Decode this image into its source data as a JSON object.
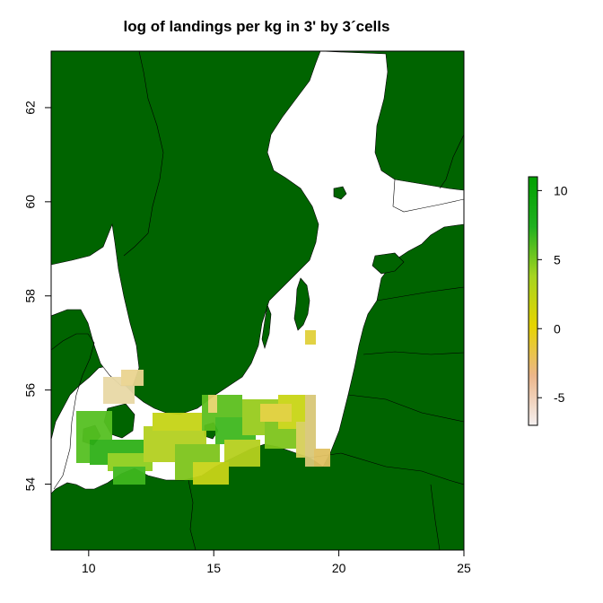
{
  "title": "log of landings per kg in 3' by 3´cells",
  "map": {
    "x_axis": {
      "range": [
        8.5,
        25
      ],
      "ticks": [
        10,
        15,
        20,
        25
      ],
      "labels": [
        "10",
        "15",
        "20",
        "25"
      ]
    },
    "y_axis": {
      "range": [
        52.6,
        63.2
      ],
      "ticks": [
        54,
        56,
        58,
        60,
        62
      ],
      "labels": [
        "54",
        "56",
        "58",
        "60",
        "62"
      ]
    },
    "land_color": "#006400",
    "sea_color": "#ffffff",
    "border_color": "#000000"
  },
  "legend": {
    "ticks": [
      10,
      5,
      0,
      -5
    ],
    "labels": [
      "10",
      "5",
      "0",
      "-5"
    ],
    "range": [
      -7,
      11
    ],
    "gradient_colors": [
      "#f5f0f0",
      "#ecb68a",
      "#e6d400",
      "#a6d420",
      "#20b020",
      "#00a000"
    ]
  }
}
